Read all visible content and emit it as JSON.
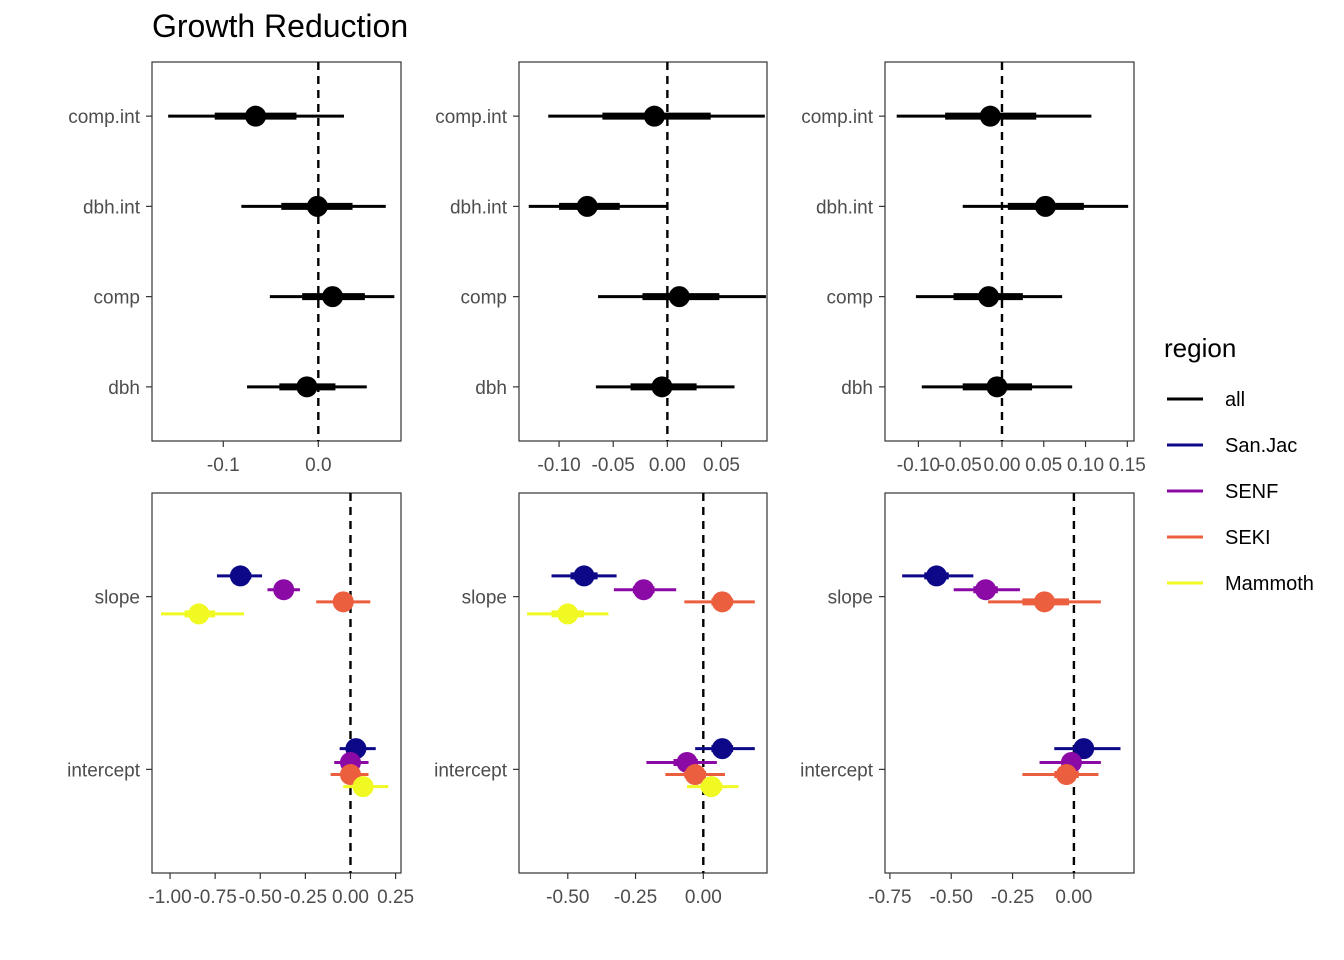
{
  "chart_data": {
    "type": "scatter",
    "title": "Growth Reduction",
    "legend": {
      "title": "region",
      "placement": "right",
      "entries": [
        {
          "name": "all",
          "color": "#000000"
        },
        {
          "name": "San.Jac",
          "color": "#0d0887"
        },
        {
          "name": "SENF",
          "color": "#8b0aa5"
        },
        {
          "name": "SEKI",
          "color": "#eb5f3f"
        },
        {
          "name": "Mammoth",
          "color": "#f0f921"
        }
      ]
    },
    "panels": [
      {
        "row": 1,
        "col": 1,
        "categories": [
          "dbh",
          "comp",
          "dbh.int",
          "comp.int"
        ],
        "xlim": [
          -0.175,
          0.087
        ],
        "xticks": [
          {
            "v": -0.1,
            "t": "-0.1"
          },
          {
            "v": 0.0,
            "t": "0.0"
          }
        ],
        "refline": 0,
        "series": [
          {
            "name": "all",
            "points": [
              {
                "cat": "comp.int",
                "offset": 0,
                "est": -0.066,
                "inner": [
                  -0.109,
                  -0.023
                ],
                "outer": [
                  -0.158,
                  0.027
                ]
              },
              {
                "cat": "dbh.int",
                "offset": 0,
                "est": -0.001,
                "inner": [
                  -0.039,
                  0.036
                ],
                "outer": [
                  -0.081,
                  0.071
                ]
              },
              {
                "cat": "comp",
                "offset": 0,
                "est": 0.015,
                "inner": [
                  -0.017,
                  0.049
                ],
                "outer": [
                  -0.051,
                  0.08
                ]
              },
              {
                "cat": "dbh",
                "offset": 0,
                "est": -0.012,
                "inner": [
                  -0.041,
                  0.018
                ],
                "outer": [
                  -0.075,
                  0.051
                ]
              }
            ]
          }
        ]
      },
      {
        "row": 1,
        "col": 2,
        "categories": [
          "dbh",
          "comp",
          "dbh.int",
          "comp.int"
        ],
        "xlim": [
          -0.137,
          0.092
        ],
        "xticks": [
          {
            "v": -0.1,
            "t": "-0.10"
          },
          {
            "v": -0.05,
            "t": "-0.05"
          },
          {
            "v": 0.0,
            "t": "0.00"
          },
          {
            "v": 0.05,
            "t": "0.05"
          }
        ],
        "refline": 0,
        "series": [
          {
            "name": "all",
            "points": [
              {
                "cat": "comp.int",
                "offset": 0,
                "est": -0.012,
                "inner": [
                  -0.06,
                  0.04
                ],
                "outer": [
                  -0.11,
                  0.09
                ]
              },
              {
                "cat": "dbh.int",
                "offset": 0,
                "est": -0.074,
                "inner": [
                  -0.1,
                  -0.044
                ],
                "outer": [
                  -0.128,
                  0.0
                ]
              },
              {
                "cat": "comp",
                "offset": 0,
                "est": 0.011,
                "inner": [
                  -0.023,
                  0.048
                ],
                "outer": [
                  -0.064,
                  0.091
                ]
              },
              {
                "cat": "dbh",
                "offset": 0,
                "est": -0.005,
                "inner": [
                  -0.034,
                  0.027
                ],
                "outer": [
                  -0.066,
                  0.062
                ]
              }
            ]
          }
        ]
      },
      {
        "row": 1,
        "col": 3,
        "categories": [
          "dbh",
          "comp",
          "dbh.int",
          "comp.int"
        ],
        "xlim": [
          -0.14,
          0.158
        ],
        "xticks": [
          {
            "v": -0.1,
            "t": "-0.10"
          },
          {
            "v": -0.05,
            "t": "-0.05"
          },
          {
            "v": 0.0,
            "t": "0.00"
          },
          {
            "v": 0.05,
            "t": "0.05"
          },
          {
            "v": 0.1,
            "t": "0.10"
          },
          {
            "v": 0.15,
            "t": "0.15"
          }
        ],
        "refline": 0,
        "series": [
          {
            "name": "all",
            "points": [
              {
                "cat": "comp.int",
                "offset": 0,
                "est": -0.014,
                "inner": [
                  -0.068,
                  0.041
                ],
                "outer": [
                  -0.126,
                  0.107
                ]
              },
              {
                "cat": "dbh.int",
                "offset": 0,
                "est": 0.052,
                "inner": [
                  0.007,
                  0.098
                ],
                "outer": [
                  -0.047,
                  0.151
                ]
              },
              {
                "cat": "comp",
                "offset": 0,
                "est": -0.016,
                "inner": [
                  -0.058,
                  0.025
                ],
                "outer": [
                  -0.103,
                  0.072
                ]
              },
              {
                "cat": "dbh",
                "offset": 0,
                "est": -0.006,
                "inner": [
                  -0.047,
                  0.036
                ],
                "outer": [
                  -0.096,
                  0.084
                ]
              }
            ]
          }
        ]
      },
      {
        "row": 2,
        "col": 1,
        "categories": [
          "intercept",
          "slope"
        ],
        "xlim": [
          -1.1,
          0.28
        ],
        "xticks": [
          {
            "v": -1.0,
            "t": "-1.00"
          },
          {
            "v": -0.75,
            "t": "-0.75"
          },
          {
            "v": -0.5,
            "t": "-0.50"
          },
          {
            "v": -0.25,
            "t": "-0.25"
          },
          {
            "v": 0.0,
            "t": "0.00"
          },
          {
            "v": 0.25,
            "t": "0.25"
          }
        ],
        "refline": 0,
        "series": [
          {
            "name": "San.Jac",
            "points": [
              {
                "cat": "slope",
                "offset": 0.12,
                "est": -0.61,
                "inner": [
                  -0.66,
                  -0.55
                ],
                "outer": [
                  -0.74,
                  -0.49
                ]
              },
              {
                "cat": "intercept",
                "offset": 0.12,
                "est": 0.03,
                "inner": [
                  -0.01,
                  0.07
                ],
                "outer": [
                  -0.06,
                  0.14
                ]
              }
            ]
          },
          {
            "name": "SENF",
            "points": [
              {
                "cat": "slope",
                "offset": 0.04,
                "est": -0.37,
                "inner": [
                  -0.41,
                  -0.33
                ],
                "outer": [
                  -0.46,
                  -0.28
                ]
              },
              {
                "cat": "intercept",
                "offset": 0.04,
                "est": 0.0,
                "inner": [
                  -0.04,
                  0.04
                ],
                "outer": [
                  -0.09,
                  0.1
                ]
              }
            ]
          },
          {
            "name": "SEKI",
            "points": [
              {
                "cat": "slope",
                "offset": -0.03,
                "est": -0.04,
                "inner": [
                  -0.09,
                  0.01
                ],
                "outer": [
                  -0.19,
                  0.11
                ]
              },
              {
                "cat": "intercept",
                "offset": -0.03,
                "est": 0.0,
                "inner": [
                  -0.05,
                  0.04
                ],
                "outer": [
                  -0.11,
                  0.1
                ]
              }
            ]
          },
          {
            "name": "Mammoth",
            "points": [
              {
                "cat": "slope",
                "offset": -0.1,
                "est": -0.84,
                "inner": [
                  -0.92,
                  -0.75
                ],
                "outer": [
                  -1.05,
                  -0.59
                ]
              },
              {
                "cat": "intercept",
                "offset": -0.1,
                "est": 0.07,
                "inner": [
                  0.03,
                  0.11
                ],
                "outer": [
                  -0.04,
                  0.21
                ]
              }
            ]
          }
        ]
      },
      {
        "row": 2,
        "col": 2,
        "categories": [
          "intercept",
          "slope"
        ],
        "xlim": [
          -0.68,
          0.235
        ],
        "xticks": [
          {
            "v": -0.5,
            "t": "-0.50"
          },
          {
            "v": -0.25,
            "t": "-0.25"
          },
          {
            "v": 0.0,
            "t": "0.00"
          }
        ],
        "refline": 0,
        "series": [
          {
            "name": "San.Jac",
            "points": [
              {
                "cat": "slope",
                "offset": 0.12,
                "est": -0.44,
                "inner": [
                  -0.49,
                  -0.39
                ],
                "outer": [
                  -0.56,
                  -0.32
                ]
              },
              {
                "cat": "intercept",
                "offset": 0.12,
                "est": 0.07,
                "inner": [
                  0.03,
                  0.11
                ],
                "outer": [
                  -0.03,
                  0.19
                ]
              }
            ]
          },
          {
            "name": "SENF",
            "points": [
              {
                "cat": "slope",
                "offset": 0.04,
                "est": -0.22,
                "inner": [
                  -0.26,
                  -0.18
                ],
                "outer": [
                  -0.33,
                  -0.1
                ]
              },
              {
                "cat": "intercept",
                "offset": 0.04,
                "est": -0.06,
                "inner": [
                  -0.11,
                  -0.02
                ],
                "outer": [
                  -0.21,
                  0.05
                ]
              }
            ]
          },
          {
            "name": "SEKI",
            "points": [
              {
                "cat": "slope",
                "offset": -0.03,
                "est": 0.07,
                "inner": [
                  0.03,
                  0.11
                ],
                "outer": [
                  -0.07,
                  0.19
                ]
              },
              {
                "cat": "intercept",
                "offset": -0.03,
                "est": -0.03,
                "inner": [
                  -0.07,
                  0.01
                ],
                "outer": [
                  -0.14,
                  0.08
                ]
              }
            ]
          },
          {
            "name": "Mammoth",
            "points": [
              {
                "cat": "slope",
                "offset": -0.1,
                "est": -0.5,
                "inner": [
                  -0.56,
                  -0.44
                ],
                "outer": [
                  -0.65,
                  -0.35
                ]
              },
              {
                "cat": "intercept",
                "offset": -0.1,
                "est": 0.03,
                "inner": [
                  -0.01,
                  0.07
                ],
                "outer": [
                  -0.06,
                  0.13
                ]
              }
            ]
          }
        ]
      },
      {
        "row": 2,
        "col": 3,
        "categories": [
          "intercept",
          "slope"
        ],
        "xlim": [
          -0.77,
          0.245
        ],
        "xticks": [
          {
            "v": -0.75,
            "t": "-0.75"
          },
          {
            "v": -0.5,
            "t": "-0.50"
          },
          {
            "v": -0.25,
            "t": "-0.25"
          },
          {
            "v": 0.0,
            "t": "0.00"
          }
        ],
        "refline": 0,
        "series": [
          {
            "name": "San.Jac",
            "points": [
              {
                "cat": "slope",
                "offset": 0.12,
                "est": -0.56,
                "inner": [
                  -0.61,
                  -0.51
                ],
                "outer": [
                  -0.7,
                  -0.41
                ]
              },
              {
                "cat": "intercept",
                "offset": 0.12,
                "est": 0.04,
                "inner": [
                  0.0,
                  0.08
                ],
                "outer": [
                  -0.08,
                  0.19
                ]
              }
            ]
          },
          {
            "name": "SENF",
            "points": [
              {
                "cat": "slope",
                "offset": 0.04,
                "est": -0.36,
                "inner": [
                  -0.41,
                  -0.31
                ],
                "outer": [
                  -0.49,
                  -0.22
                ]
              },
              {
                "cat": "intercept",
                "offset": 0.04,
                "est": -0.01,
                "inner": [
                  -0.05,
                  0.03
                ],
                "outer": [
                  -0.14,
                  0.11
                ]
              }
            ]
          },
          {
            "name": "SEKI",
            "points": [
              {
                "cat": "slope",
                "offset": -0.03,
                "est": -0.12,
                "inner": [
                  -0.21,
                  -0.02
                ],
                "outer": [
                  -0.35,
                  0.11
                ]
              },
              {
                "cat": "intercept",
                "offset": -0.03,
                "est": -0.03,
                "inner": [
                  -0.08,
                  0.02
                ],
                "outer": [
                  -0.21,
                  0.1
                ]
              }
            ]
          }
        ]
      }
    ]
  }
}
